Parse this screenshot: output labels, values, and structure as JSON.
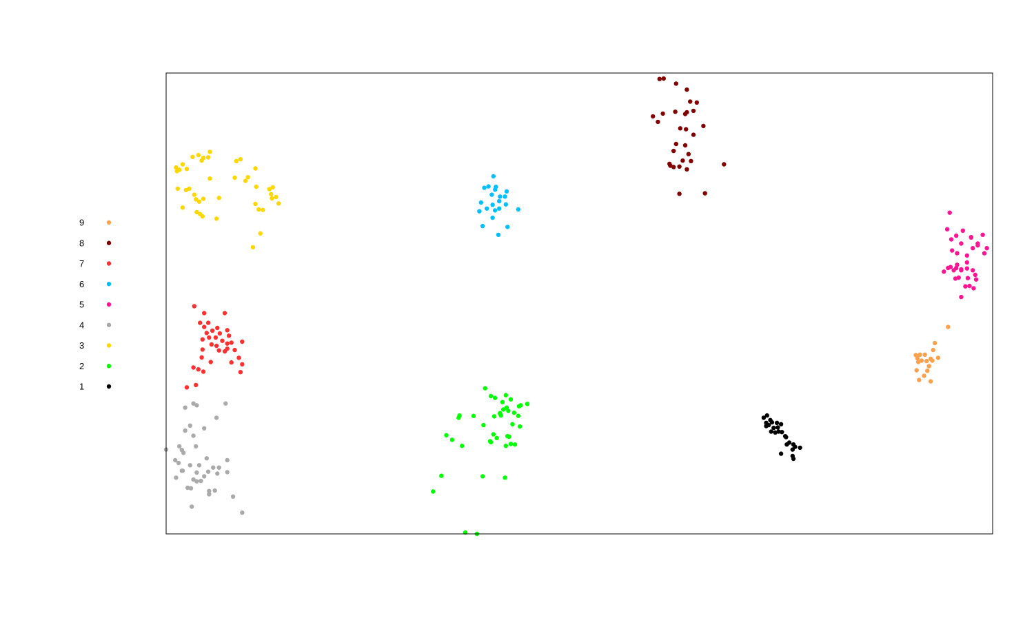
{
  "chart_data": {
    "type": "scatter",
    "title": "",
    "xlabel": "",
    "ylabel": "",
    "xlim": [
      0,
      100
    ],
    "ylim": [
      0,
      100
    ],
    "grid": false,
    "axes_ticks": false,
    "legend_position": "left",
    "series": [
      {
        "name": "9",
        "color": "#FFA04D",
        "points": [
          [
            90.7,
            38.8
          ],
          [
            90.9,
            38.1
          ],
          [
            91.2,
            38.9
          ],
          [
            91.0,
            37.3
          ],
          [
            91.4,
            37.6
          ],
          [
            90.8,
            35.5
          ],
          [
            91.7,
            34.3
          ],
          [
            91.1,
            33.4
          ],
          [
            91.8,
            38.9
          ],
          [
            92.0,
            37.5
          ],
          [
            92.3,
            36.4
          ],
          [
            92.5,
            38.0
          ],
          [
            92.7,
            37.6
          ],
          [
            92.1,
            35.4
          ],
          [
            93.0,
            41.4
          ],
          [
            92.8,
            39.9
          ],
          [
            93.4,
            38.2
          ],
          [
            94.6,
            44.9
          ],
          [
            92.5,
            33.1
          ]
        ]
      },
      {
        "name": "8",
        "color": "#800000",
        "points": [
          [
            59.7,
            98.7
          ],
          [
            60.2,
            98.8
          ],
          [
            61.7,
            97.7
          ],
          [
            63.0,
            96.4
          ],
          [
            63.4,
            93.8
          ],
          [
            64.2,
            93.6
          ],
          [
            63.0,
            91.5
          ],
          [
            63.8,
            91.8
          ],
          [
            58.9,
            90.6
          ],
          [
            60.1,
            91.2
          ],
          [
            61.6,
            91.6
          ],
          [
            62.8,
            91.1
          ],
          [
            65.0,
            88.5
          ],
          [
            62.2,
            88.0
          ],
          [
            62.9,
            87.8
          ],
          [
            63.8,
            86.6
          ],
          [
            61.7,
            84.6
          ],
          [
            62.8,
            84.3
          ],
          [
            61.4,
            83.1
          ],
          [
            63.2,
            82.4
          ],
          [
            62.5,
            81.0
          ],
          [
            63.5,
            80.9
          ],
          [
            61.0,
            79.9
          ],
          [
            61.4,
            79.6
          ],
          [
            62.1,
            79.7
          ],
          [
            60.9,
            80.3
          ],
          [
            63.0,
            79.1
          ],
          [
            67.5,
            80.2
          ],
          [
            62.1,
            73.8
          ],
          [
            65.2,
            73.9
          ],
          [
            59.5,
            89.4
          ]
        ]
      },
      {
        "name": "7",
        "color": "#FF3030",
        "points": [
          [
            3.4,
            49.4
          ],
          [
            4.6,
            47.9
          ],
          [
            7.1,
            47.9
          ],
          [
            4.1,
            45.8
          ],
          [
            5.1,
            45.8
          ],
          [
            4.6,
            44.9
          ],
          [
            6.2,
            44.7
          ],
          [
            5.6,
            44.1
          ],
          [
            6.5,
            43.5
          ],
          [
            7.4,
            44.2
          ],
          [
            4.9,
            43.6
          ],
          [
            6.0,
            42.6
          ],
          [
            7.6,
            43.0
          ],
          [
            4.4,
            42.2
          ],
          [
            5.2,
            42.6
          ],
          [
            6.8,
            41.9
          ],
          [
            7.4,
            41.3
          ],
          [
            5.5,
            41.1
          ],
          [
            6.1,
            40.8
          ],
          [
            9.2,
            41.7
          ],
          [
            7.9,
            41.5
          ],
          [
            4.4,
            40.0
          ],
          [
            6.4,
            39.8
          ],
          [
            7.1,
            39.6
          ],
          [
            7.4,
            40.2
          ],
          [
            8.3,
            39.9
          ],
          [
            4.3,
            38.3
          ],
          [
            8.8,
            38.2
          ],
          [
            5.4,
            37.3
          ],
          [
            7.9,
            37.2
          ],
          [
            9.2,
            36.8
          ],
          [
            3.3,
            36.1
          ],
          [
            3.9,
            35.7
          ],
          [
            4.5,
            35.2
          ],
          [
            9.0,
            35.1
          ],
          [
            3.6,
            32.3
          ],
          [
            2.5,
            31.8
          ]
        ]
      },
      {
        "name": "6",
        "color": "#00BFFF",
        "points": [
          [
            39.6,
            77.6
          ],
          [
            39.0,
            75.4
          ],
          [
            39.9,
            75.3
          ],
          [
            38.5,
            75.1
          ],
          [
            39.8,
            74.7
          ],
          [
            41.2,
            74.3
          ],
          [
            40.4,
            73.2
          ],
          [
            39.4,
            73.6
          ],
          [
            40.3,
            72.2
          ],
          [
            38.1,
            71.9
          ],
          [
            41.0,
            73.2
          ],
          [
            39.5,
            71.4
          ],
          [
            40.3,
            70.6
          ],
          [
            41.1,
            71.5
          ],
          [
            37.9,
            70.0
          ],
          [
            38.8,
            70.6
          ],
          [
            39.8,
            70.2
          ],
          [
            42.6,
            70.4
          ],
          [
            39.5,
            68.6
          ],
          [
            38.3,
            66.8
          ],
          [
            41.3,
            66.6
          ],
          [
            40.2,
            64.9
          ]
        ]
      },
      {
        "name": "5",
        "color": "#FF1493",
        "points": [
          [
            94.8,
            69.7
          ],
          [
            94.5,
            66.1
          ],
          [
            95.0,
            63.9
          ],
          [
            95.6,
            64.7
          ],
          [
            96.4,
            65.8
          ],
          [
            97.4,
            64.3
          ],
          [
            97.6,
            62.0
          ],
          [
            96.2,
            63.0
          ],
          [
            97.4,
            64.4
          ],
          [
            98.2,
            63.0
          ],
          [
            95.1,
            61.5
          ],
          [
            95.7,
            60.9
          ],
          [
            96.9,
            60.4
          ],
          [
            94.9,
            57.9
          ],
          [
            95.7,
            58.4
          ],
          [
            96.9,
            58.9
          ],
          [
            95.3,
            57.2
          ],
          [
            96.2,
            57.4
          ],
          [
            96.9,
            57.6
          ],
          [
            97.6,
            57.2
          ],
          [
            95.9,
            55.6
          ],
          [
            95.6,
            57.7
          ],
          [
            94.1,
            56.9
          ],
          [
            96.2,
            57.2
          ],
          [
            97.0,
            55.5
          ],
          [
            98.8,
            64.9
          ],
          [
            98.2,
            62.6
          ],
          [
            99.3,
            62.0
          ],
          [
            99.0,
            60.9
          ],
          [
            97.9,
            56.2
          ],
          [
            95.5,
            55.4
          ],
          [
            96.7,
            53.7
          ],
          [
            97.2,
            53.8
          ],
          [
            97.7,
            53.3
          ],
          [
            98.0,
            55.2
          ],
          [
            96.2,
            51.4
          ],
          [
            94.6,
            57.7
          ]
        ]
      },
      {
        "name": "4",
        "color": "#AAAAAA",
        "points": [
          [
            2.3,
            27.4
          ],
          [
            3.3,
            28.3
          ],
          [
            3.7,
            27.9
          ],
          [
            7.2,
            28.3
          ],
          [
            6.1,
            25.2
          ],
          [
            2.9,
            23.5
          ],
          [
            4.6,
            22.9
          ],
          [
            3.3,
            21.3
          ],
          [
            3.6,
            19.0
          ],
          [
            1.6,
            19.0
          ],
          [
            1.9,
            18.2
          ],
          [
            0.0,
            18.3
          ],
          [
            2.1,
            17.6
          ],
          [
            4.9,
            16.4
          ],
          [
            7.4,
            16.0
          ],
          [
            1.1,
            16.0
          ],
          [
            1.5,
            15.4
          ],
          [
            2.9,
            14.9
          ],
          [
            4.0,
            14.9
          ],
          [
            5.7,
            14.4
          ],
          [
            6.4,
            14.4
          ],
          [
            1.9,
            13.7
          ],
          [
            2.0,
            13.7
          ],
          [
            3.7,
            13.3
          ],
          [
            5.1,
            13.5
          ],
          [
            6.2,
            13.1
          ],
          [
            7.4,
            13.4
          ],
          [
            1.2,
            12.2
          ],
          [
            4.6,
            12.5
          ],
          [
            3.3,
            11.8
          ],
          [
            3.7,
            11.4
          ],
          [
            4.2,
            11.5
          ],
          [
            2.6,
            10.0
          ],
          [
            3.0,
            9.9
          ],
          [
            5.2,
            9.3
          ],
          [
            5.9,
            9.4
          ],
          [
            5.2,
            8.6
          ],
          [
            8.1,
            8.1
          ],
          [
            3.1,
            5.9
          ],
          [
            9.2,
            4.6
          ],
          [
            2.3,
            22.4
          ]
        ]
      },
      {
        "name": "3",
        "color": "#FFD700",
        "points": [
          [
            1.3,
            78.7
          ],
          [
            2.0,
            80.2
          ],
          [
            2.5,
            79.2
          ],
          [
            3.2,
            81.8
          ],
          [
            3.9,
            82.2
          ],
          [
            4.3,
            81.0
          ],
          [
            4.5,
            81.6
          ],
          [
            5.1,
            81.7
          ],
          [
            5.3,
            82.9
          ],
          [
            8.5,
            80.9
          ],
          [
            9.0,
            81.3
          ],
          [
            10.8,
            79.3
          ],
          [
            1.2,
            79.5
          ],
          [
            1.6,
            79.0
          ],
          [
            5.3,
            77.1
          ],
          [
            8.3,
            77.3
          ],
          [
            9.6,
            76.6
          ],
          [
            9.9,
            77.4
          ],
          [
            1.4,
            74.9
          ],
          [
            2.4,
            74.6
          ],
          [
            2.8,
            74.9
          ],
          [
            3.4,
            73.6
          ],
          [
            3.6,
            72.6
          ],
          [
            4.0,
            72.1
          ],
          [
            4.5,
            72.7
          ],
          [
            6.4,
            72.9
          ],
          [
            10.9,
            75.3
          ],
          [
            12.5,
            74.8
          ],
          [
            12.9,
            75.2
          ],
          [
            12.7,
            73.7
          ],
          [
            12.8,
            72.8
          ],
          [
            13.3,
            73.1
          ],
          [
            13.6,
            71.7
          ],
          [
            10.8,
            71.6
          ],
          [
            11.2,
            70.4
          ],
          [
            11.7,
            70.3
          ],
          [
            2.0,
            70.8
          ],
          [
            3.7,
            69.8
          ],
          [
            4.1,
            69.4
          ],
          [
            6.1,
            68.4
          ],
          [
            11.4,
            65.2
          ],
          [
            10.5,
            62.2
          ],
          [
            4.4,
            68.9
          ]
        ]
      },
      {
        "name": "2",
        "color": "#00FF00",
        "points": [
          [
            38.6,
            31.6
          ],
          [
            39.3,
            29.9
          ],
          [
            41.1,
            30.1
          ],
          [
            39.8,
            29.5
          ],
          [
            40.7,
            28.6
          ],
          [
            41.7,
            29.2
          ],
          [
            42.7,
            27.7
          ],
          [
            41.2,
            27.4
          ],
          [
            40.8,
            27.0
          ],
          [
            41.4,
            26.7
          ],
          [
            40.4,
            26.1
          ],
          [
            42.1,
            26.3
          ],
          [
            39.7,
            25.5
          ],
          [
            40.5,
            25.7
          ],
          [
            37.2,
            25.6
          ],
          [
            35.4,
            25.2
          ],
          [
            42.9,
            27.9
          ],
          [
            43.7,
            28.2
          ],
          [
            42.6,
            25.6
          ],
          [
            41.9,
            23.8
          ],
          [
            42.8,
            23.3
          ],
          [
            38.4,
            23.6
          ],
          [
            39.6,
            21.6
          ],
          [
            41.5,
            21.1
          ],
          [
            41.3,
            21.2
          ],
          [
            40.0,
            20.8
          ],
          [
            39.2,
            20.1
          ],
          [
            33.9,
            21.4
          ],
          [
            34.6,
            20.4
          ],
          [
            35.8,
            19.1
          ],
          [
            41.7,
            19.5
          ],
          [
            41.1,
            19.1
          ],
          [
            42.2,
            19.4
          ],
          [
            39.3,
            19.9
          ],
          [
            33.3,
            12.6
          ],
          [
            38.3,
            12.5
          ],
          [
            41.0,
            12.2
          ],
          [
            32.3,
            9.2
          ],
          [
            36.2,
            0.3
          ],
          [
            37.6,
            0.0
          ],
          [
            35.5,
            25.7
          ],
          [
            40.4,
            26.2
          ]
        ]
      },
      {
        "name": "1",
        "color": "#000000",
        "points": [
          [
            72.7,
            25.7
          ],
          [
            72.3,
            25.2
          ],
          [
            73.1,
            24.7
          ],
          [
            72.6,
            24.1
          ],
          [
            72.9,
            23.6
          ],
          [
            73.3,
            24.2
          ],
          [
            73.9,
            24.1
          ],
          [
            74.4,
            23.8
          ],
          [
            74.0,
            23.1
          ],
          [
            73.5,
            23.0
          ],
          [
            73.2,
            22.2
          ],
          [
            73.7,
            22.0
          ],
          [
            74.1,
            22.2
          ],
          [
            74.5,
            22.1
          ],
          [
            74.9,
            21.2
          ],
          [
            75.0,
            21.0
          ],
          [
            75.4,
            19.8
          ],
          [
            75.9,
            19.4
          ],
          [
            75.1,
            19.4
          ],
          [
            76.1,
            18.9
          ],
          [
            76.7,
            18.7
          ],
          [
            75.8,
            18.3
          ],
          [
            74.4,
            17.4
          ],
          [
            75.8,
            16.9
          ],
          [
            75.9,
            16.3
          ],
          [
            72.6,
            23.4
          ]
        ]
      }
    ]
  }
}
